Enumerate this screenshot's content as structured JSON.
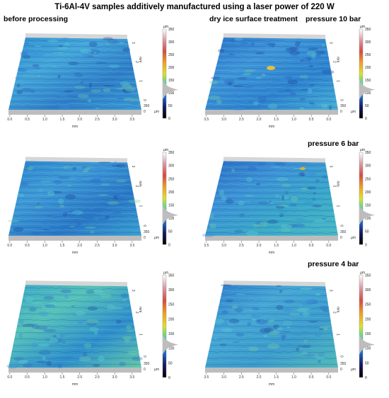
{
  "figure": {
    "title": "Ti-6Al-4V samples additively manufactured using a laser power of 220 W"
  },
  "headers": {
    "left": "before processing",
    "middle": "dry ice surface treatment",
    "row1": "pressure  10 bar",
    "row2": "pressure 6 bar",
    "row3": "pressure  4 bar"
  },
  "axes": {
    "x_ticks_left": [
      "0.0",
      "0.5",
      "1.0",
      "1.5",
      "2.0",
      "2.5",
      "3.0",
      "3.5"
    ],
    "x_ticks_right": [
      "3.5",
      "3.0",
      "2.5",
      "2.0",
      "1.5",
      "1.0",
      "0.5",
      "0.0"
    ],
    "x_unit": "mm",
    "y_ticks": [
      "0",
      "1",
      "2",
      "3"
    ],
    "y_unit": "mm",
    "z_ticks": [
      "350",
      "0"
    ],
    "z_unit": "µm"
  },
  "colorbar": {
    "unit": "µm",
    "ticks": [
      "350",
      "300",
      "250",
      "200",
      "150",
      "100",
      "50",
      "0"
    ],
    "colors": [
      "#ffffff",
      "#d99aa5",
      "#d84a42",
      "#f0a020",
      "#dde030",
      "#3fd0b0",
      "#2070d0",
      "#181860",
      "#000000"
    ]
  },
  "panels": [
    {
      "id": "r1-before",
      "surface_colors": [
        "#2f8fd0",
        "#45a6da",
        "#2f7fc8",
        "#3a9cd6"
      ]
    },
    {
      "id": "r1-10bar",
      "surface_colors": [
        "#2a72c8",
        "#3f95d8",
        "#2e83cf",
        "#47b0d6"
      ]
    },
    {
      "id": "r2-before",
      "surface_colors": [
        "#2c86ce",
        "#3f9ad6",
        "#2a78c6",
        "#3aa0d2"
      ]
    },
    {
      "id": "r2-6bar",
      "surface_colors": [
        "#2a6cc4",
        "#3d92d6",
        "#3aa8c8",
        "#4ab8c4"
      ]
    },
    {
      "id": "r3-before",
      "surface_colors": [
        "#3aa6c8",
        "#56c2b8",
        "#2e8ecc",
        "#62c8a8"
      ]
    },
    {
      "id": "r3-4bar",
      "surface_colors": [
        "#2e7ccc",
        "#46a6d4",
        "#3c9ccc",
        "#52bab8"
      ]
    }
  ]
}
